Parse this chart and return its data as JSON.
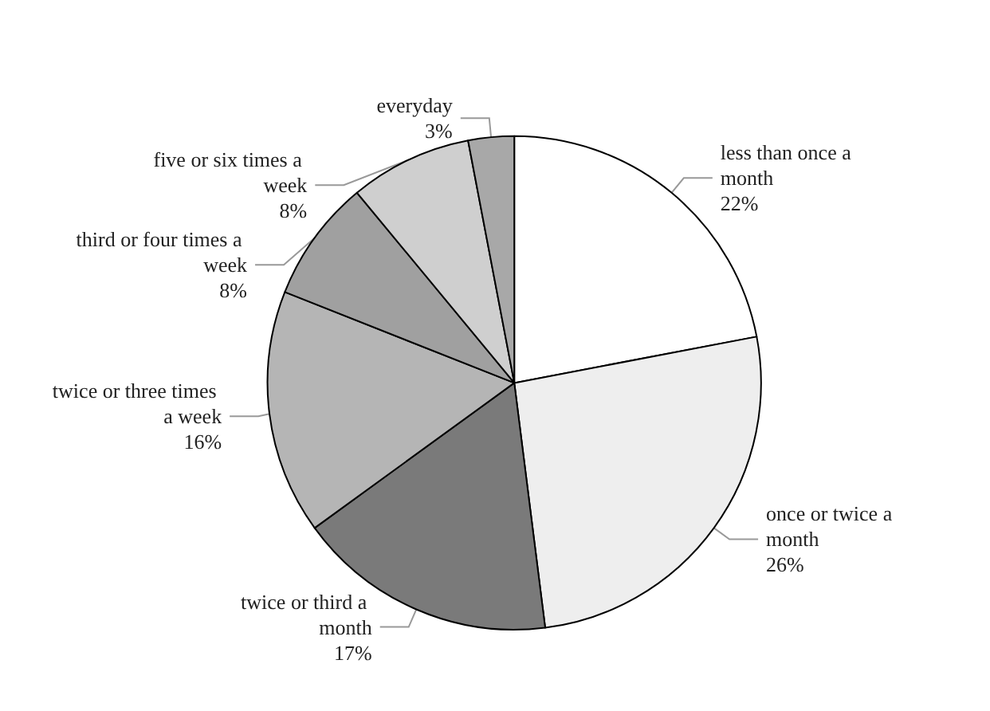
{
  "chart_data": {
    "type": "pie",
    "categories": [
      "less than once a month",
      "once or twice a month",
      "twice or third a month",
      "twice or three times a week",
      "third or four times a week",
      "five or six times a week",
      "everyday"
    ],
    "values": [
      22,
      26,
      17,
      16,
      8,
      8,
      3
    ],
    "colors": [
      "#ffffff",
      "#eeeeee",
      "#7a7a7a",
      "#b5b5b5",
      "#a0a0a0",
      "#cfcfcf",
      "#a8a8a8"
    ],
    "value_labels": [
      "22%",
      "26%",
      "17%",
      "16%",
      "8%",
      "8%",
      "3%"
    ],
    "legend": false
  }
}
